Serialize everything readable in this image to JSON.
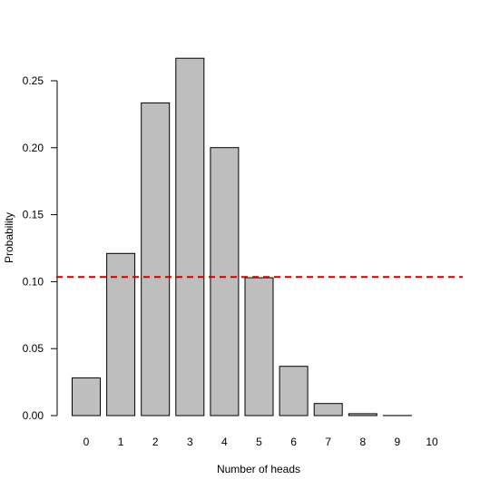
{
  "chart_data": {
    "type": "bar",
    "title": "",
    "xlabel": "Number of heads",
    "ylabel": "Probability",
    "categories": [
      "0",
      "1",
      "2",
      "3",
      "4",
      "5",
      "6",
      "7",
      "8",
      "9",
      "10"
    ],
    "values": [
      0.0282,
      0.1211,
      0.2335,
      0.2668,
      0.2001,
      0.1029,
      0.0368,
      0.009,
      0.0014,
      0.0001,
      0.0
    ],
    "ylim": [
      0,
      0.27
    ],
    "yticks": [
      "0.00",
      "0.05",
      "0.10",
      "0.15",
      "0.20",
      "0.25"
    ],
    "reference_line": {
      "y": 0.1035,
      "style": "dashed"
    },
    "grid": false,
    "colors": {
      "bar_fill": "#bebebe",
      "bar_stroke": "#000000",
      "reference_line": "#cc0000"
    }
  }
}
